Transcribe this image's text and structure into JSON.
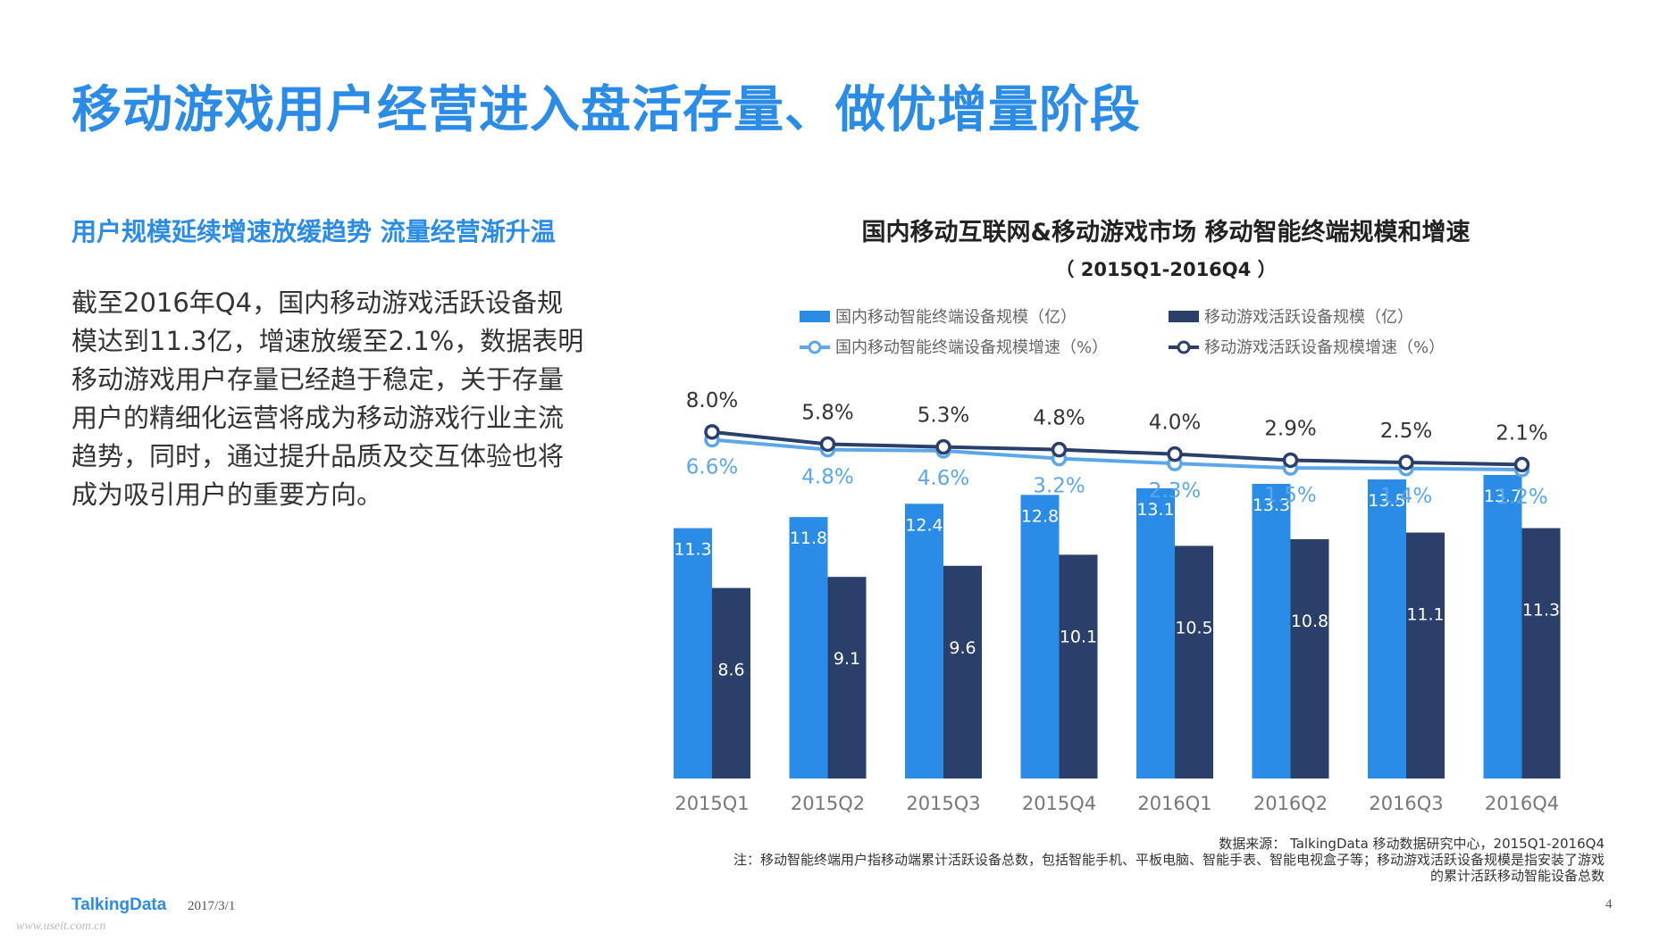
{
  "page": {
    "title": "移动游戏用户经营进入盘活存量、做优增量阶段",
    "subtitle": "用户规模延续增速放缓趋势 流量经营渐升温",
    "body": "截至2016年Q4，国内移动游戏活跃设备规模达到11.3亿，增速放缓至2.1%，数据表明移动游戏用户存量已经趋于稳定，关于存量用户的精细化运营将成为移动游戏行业主流趋势，同时，通过提升品质及交互体验也将成为吸引用户的重要方向。",
    "source": "数据来源： TalkingData 移动数据研究中心，2015Q1-2016Q4",
    "note_line1": "注：移动智能终端用户指移动端累计活跃设备总数，包括智能手机、平板电脑、智能手表、智能电视盒子等；移动游戏活跃设备规模是指安装了游戏",
    "note_line2": "的累计活跃移动智能设备总数",
    "footer_logo": "TalkingData",
    "footer_date": "2017/3/1",
    "page_number": "4",
    "watermark": "www.useit.com.cn"
  },
  "colors": {
    "accent": "#2b8ce8",
    "bar_light": "#2b8ce8",
    "bar_dark": "#2b3f6b",
    "line_light": "#5ba7ea",
    "line_dark": "#2b3f6b"
  },
  "chart_data": {
    "type": "bar",
    "title": "国内移动互联网&移动游戏市场  移动智能终端规模和增速",
    "period": "（ 2015Q1-2016Q4 ）",
    "categories": [
      "2015Q1",
      "2015Q2",
      "2015Q3",
      "2015Q4",
      "2016Q1",
      "2016Q2",
      "2016Q3",
      "2016Q4"
    ],
    "series": [
      {
        "name": "国内移动智能终端设备规模（亿）",
        "kind": "bar",
        "values": [
          11.3,
          11.8,
          12.4,
          12.8,
          13.1,
          13.3,
          13.5,
          13.7
        ],
        "labels": [
          "11.3",
          "11.8",
          "12.4",
          "12.8",
          "13.1",
          "13.3",
          "13.5",
          "13.7"
        ]
      },
      {
        "name": "移动游戏活跃设备规模（亿）",
        "kind": "bar",
        "values": [
          8.6,
          9.1,
          9.6,
          10.1,
          10.5,
          10.8,
          11.1,
          11.3
        ],
        "labels": [
          "8.6",
          "9.1",
          "9.6",
          "10.1",
          "10.5",
          "10.8",
          "11.1",
          "11.3"
        ]
      },
      {
        "name": "国内移动智能终端设备规模增速（%）",
        "kind": "line",
        "values": [
          6.6,
          4.8,
          4.6,
          3.2,
          2.3,
          1.5,
          1.4,
          1.2
        ],
        "labels": [
          "6.6%",
          "4.8%",
          "4.6%",
          "3.2%",
          "2.3%",
          "1.5%",
          "1.4%",
          "1.2%"
        ]
      },
      {
        "name": "移动游戏活跃设备规模增速（%）",
        "kind": "line",
        "values": [
          8.0,
          5.8,
          5.3,
          4.8,
          4.0,
          2.9,
          2.5,
          2.1
        ],
        "labels": [
          "8.0%",
          "5.8%",
          "5.3%",
          "4.8%",
          "4.0%",
          "2.9%",
          "2.5%",
          "2.1%"
        ]
      }
    ],
    "ylim_bar": [
      0,
      14
    ],
    "legend_position": "top",
    "grid": false
  }
}
